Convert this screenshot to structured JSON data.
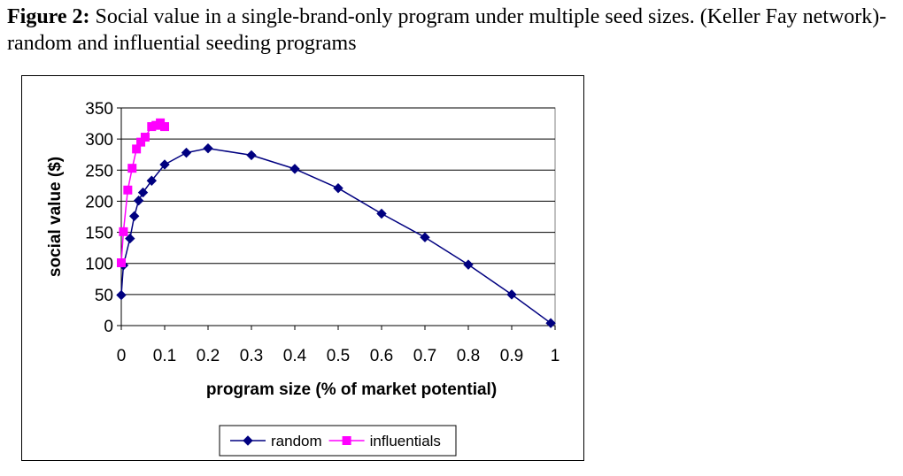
{
  "caption": {
    "label": "Figure 2:",
    "text": " Social value in a single-brand-only program under multiple seed sizes. (Keller Fay network)- random and influential seeding programs"
  },
  "chart_data": {
    "type": "line",
    "xlabel": "program size (% of market potential)",
    "ylabel": "social value ($)",
    "xlim": [
      0,
      1
    ],
    "ylim": [
      0,
      350
    ],
    "xticks": [
      0,
      0.1,
      0.2,
      0.3,
      0.4,
      0.5,
      0.6,
      0.7,
      0.8,
      0.9,
      1
    ],
    "xtick_labels": [
      "0",
      "0.1",
      "0.2",
      "0.3",
      "0.4",
      "0.5",
      "0.6",
      "0.7",
      "0.8",
      "0.9",
      "1"
    ],
    "yticks": [
      0,
      50,
      100,
      150,
      200,
      250,
      300,
      350
    ],
    "ytick_labels": [
      "0",
      "50",
      "100",
      "150",
      "200",
      "250",
      "300",
      "350"
    ],
    "grid": "horizontal",
    "legend_position": "bottom",
    "series": [
      {
        "name": "random",
        "color": "#000080",
        "marker": "diamond",
        "x": [
          0.0,
          0.005,
          0.02,
          0.03,
          0.04,
          0.05,
          0.07,
          0.1,
          0.15,
          0.2,
          0.3,
          0.4,
          0.5,
          0.6,
          0.7,
          0.8,
          0.9,
          0.99
        ],
        "y": [
          49,
          97,
          140,
          176,
          201,
          214,
          233,
          259,
          278,
          285,
          274,
          252,
          221,
          180,
          142,
          98,
          50,
          4
        ]
      },
      {
        "name": "influentials",
        "color": "#ff00ff",
        "marker": "square",
        "x": [
          0.0,
          0.005,
          0.015,
          0.025,
          0.035,
          0.045,
          0.055,
          0.07,
          0.08,
          0.09,
          0.1
        ],
        "y": [
          101,
          151,
          218,
          253,
          284,
          295,
          303,
          320,
          322,
          326,
          320
        ]
      }
    ]
  }
}
